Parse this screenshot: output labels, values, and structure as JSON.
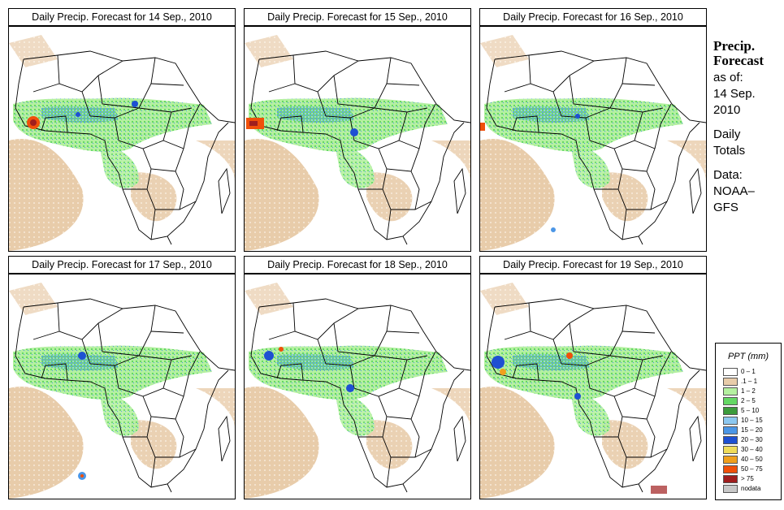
{
  "panels": [
    {
      "title": "Daily Precip. Forecast for  14 Sep., 2010"
    },
    {
      "title": "Daily Precip. Forecast for  15 Sep., 2010"
    },
    {
      "title": "Daily Precip. Forecast for  16 Sep., 2010"
    },
    {
      "title": "Daily Precip. Forecast for  17 Sep., 2010"
    },
    {
      "title": "Daily Precip. Forecast for  18 Sep., 2010"
    },
    {
      "title": "Daily Precip. Forecast for  19 Sep., 2010"
    }
  ],
  "side": {
    "heading1": "Precip.",
    "heading2": "Forecast",
    "asof": "as of:",
    "date1": "14 Sep.",
    "date2": "2010",
    "daily": "Daily",
    "totals": "Totals",
    "data_label": "Data:",
    "source1": "NOAA–",
    "source2": "GFS"
  },
  "legend": {
    "title": "PPT (mm)",
    "items": [
      {
        "label": "0 – 1",
        "color": "#ffffff"
      },
      {
        "label": ".1 – 1",
        "color": "#e8ccaa"
      },
      {
        "label": "1 – 2",
        "color": "#b4f0a0"
      },
      {
        "label": "2 – 5",
        "color": "#64d864"
      },
      {
        "label": "5 – 10",
        "color": "#3c9b3c"
      },
      {
        "label": "10 – 15",
        "color": "#8cc8f0"
      },
      {
        "label": "15 – 20",
        "color": "#4b96e6"
      },
      {
        "label": "20 – 30",
        "color": "#1e50d2"
      },
      {
        "label": "30 – 40",
        "color": "#f0dc5a"
      },
      {
        "label": "40 – 50",
        "color": "#f0a01e"
      },
      {
        "label": "50 – 75",
        "color": "#f0500a"
      },
      {
        "label": "> 75",
        "color": "#a01e1e"
      },
      {
        "label": "nodata",
        "color": "#c8c8c8"
      }
    ]
  },
  "colors": {
    "sand": "#e8ccaa",
    "light_green": "#b4f0a0",
    "green": "#64d864",
    "blue": "#4b96e6",
    "dark_blue": "#1e50d2",
    "red": "#f0500a"
  }
}
